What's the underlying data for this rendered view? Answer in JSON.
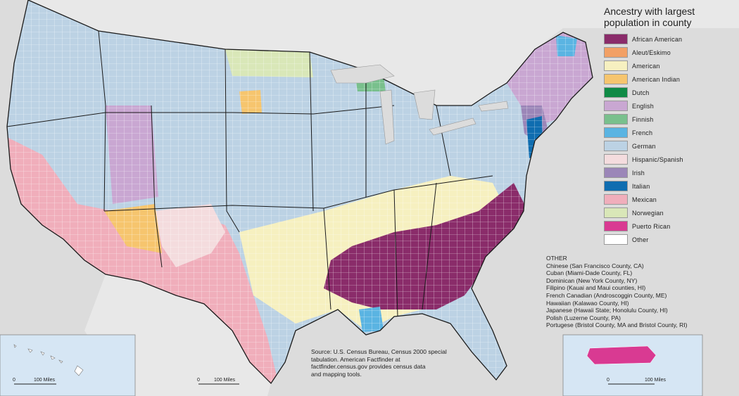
{
  "legend": {
    "title_line1": "Ancestry with largest",
    "title_line2": "population in county",
    "items": [
      {
        "label": "African American",
        "color": "#8a2c6a"
      },
      {
        "label": "Aleut/Eskimo",
        "color": "#f2a065"
      },
      {
        "label": "American",
        "color": "#f6f0c0"
      },
      {
        "label": "American Indian",
        "color": "#f6c56e"
      },
      {
        "label": "Dutch",
        "color": "#0f8a45"
      },
      {
        "label": "English",
        "color": "#c9a7d2"
      },
      {
        "label": "Finnish",
        "color": "#79c08d"
      },
      {
        "label": "French",
        "color": "#5ab4e2"
      },
      {
        "label": "German",
        "color": "#bcd2e4"
      },
      {
        "label": "Hispanic/Spanish",
        "color": "#f4dcde"
      },
      {
        "label": "Irish",
        "color": "#9b86b8"
      },
      {
        "label": "Italian",
        "color": "#0f6db0"
      },
      {
        "label": "Mexican",
        "color": "#f0aebb"
      },
      {
        "label": "Norwegian",
        "color": "#d9e7b8"
      },
      {
        "label": "Puerto Rican",
        "color": "#d93a92"
      },
      {
        "label": "Other",
        "color": "#ffffff"
      }
    ]
  },
  "other": {
    "heading": "OTHER",
    "entries": [
      "Chinese (San Francisco County, CA)",
      "Cuban (Miami-Dade County, FL)",
      "Dominican (New York County, NY)",
      "Filipino (Kauai and Maui counties, HI)",
      "French Canadian (Androscoggin County, ME)",
      "Hawaiian (Kalawao County, HI)",
      "Japanese (Hawaii State; Honolulu County, HI)",
      "Polish (Luzerne County, PA)",
      "Portugese (Bristol County, MA and Bristol County, RI)"
    ]
  },
  "source": {
    "line1": "Source: U.S. Census Bureau, Census 2000 special",
    "line2": "tabulation. American Factfinder at",
    "line3": "factfinder.census.gov provides census data",
    "line4": "and mapping tools."
  },
  "scale": {
    "hawaii": {
      "zero": "0",
      "label": "100 Miles"
    },
    "alaska": {
      "zero": "0",
      "label": "100 Miles"
    },
    "puerto_rico": {
      "zero": "0",
      "label": "100 Miles"
    }
  },
  "colors": {
    "water": "#dcdcdc",
    "inset_bg": "#d6e6f4",
    "state_border": "#1a1a1a",
    "county_border": "#ffffff"
  }
}
